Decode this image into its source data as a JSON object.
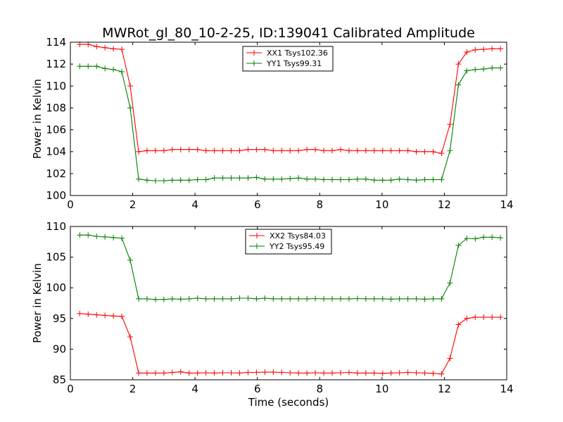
{
  "chart_data": [
    {
      "type": "line",
      "title": "MWRot_gl_80_10-2-25, ID:139041 Calibrated Amplitude",
      "xlabel": "",
      "ylabel": "Power in Kelvin",
      "xlim": [
        0,
        14
      ],
      "ylim": [
        100,
        114
      ],
      "xticks": [
        0,
        2,
        4,
        6,
        8,
        10,
        12,
        14
      ],
      "yticks": [
        100,
        102,
        104,
        106,
        108,
        110,
        112,
        114
      ],
      "legend_position": "top-center",
      "x": [
        0.3,
        0.57,
        0.84,
        1.11,
        1.38,
        1.65,
        1.92,
        2.19,
        2.46,
        2.73,
        3.0,
        3.27,
        3.54,
        3.81,
        4.08,
        4.35,
        4.62,
        4.89,
        5.16,
        5.43,
        5.7,
        5.97,
        6.24,
        6.51,
        6.78,
        7.05,
        7.32,
        7.59,
        7.86,
        8.13,
        8.4,
        8.67,
        8.94,
        9.21,
        9.48,
        9.75,
        10.02,
        10.29,
        10.56,
        10.83,
        11.1,
        11.37,
        11.64,
        11.91,
        12.18,
        12.45,
        12.72,
        12.99,
        13.26,
        13.53,
        13.8
      ],
      "series": [
        {
          "name": "XX1 Tsys102.36",
          "color": "#ff0000",
          "values": [
            113.8,
            113.8,
            113.6,
            113.5,
            113.4,
            113.35,
            110.0,
            104.0,
            104.1,
            104.1,
            104.1,
            104.2,
            104.2,
            104.2,
            104.2,
            104.1,
            104.1,
            104.1,
            104.1,
            104.1,
            104.2,
            104.2,
            104.2,
            104.1,
            104.1,
            104.1,
            104.1,
            104.2,
            104.2,
            104.1,
            104.1,
            104.2,
            104.1,
            104.1,
            104.1,
            104.1,
            104.1,
            104.1,
            104.1,
            104.1,
            104.0,
            104.0,
            104.0,
            103.85,
            106.5,
            112.0,
            113.1,
            113.3,
            113.35,
            113.4,
            113.4
          ]
        },
        {
          "name": "YY1 Tsys99.31",
          "color": "#008000",
          "values": [
            111.8,
            111.8,
            111.8,
            111.6,
            111.5,
            111.3,
            108.0,
            101.5,
            101.4,
            101.35,
            101.35,
            101.4,
            101.4,
            101.4,
            101.45,
            101.45,
            101.6,
            101.6,
            101.6,
            101.6,
            101.6,
            101.65,
            101.5,
            101.5,
            101.5,
            101.55,
            101.6,
            101.5,
            101.5,
            101.45,
            101.45,
            101.45,
            101.45,
            101.5,
            101.5,
            101.4,
            101.4,
            101.4,
            101.5,
            101.45,
            101.4,
            101.45,
            101.45,
            101.45,
            104.1,
            110.1,
            111.4,
            111.5,
            111.55,
            111.65,
            111.65
          ]
        }
      ]
    },
    {
      "type": "line",
      "title": "",
      "xlabel": "Time (seconds)",
      "ylabel": "Power in Kelvin",
      "xlim": [
        0,
        14
      ],
      "ylim": [
        85,
        110
      ],
      "xticks": [
        0,
        2,
        4,
        6,
        8,
        10,
        12,
        14
      ],
      "yticks": [
        85,
        90,
        95,
        100,
        105,
        110
      ],
      "legend_position": "top-center",
      "x": [
        0.3,
        0.57,
        0.84,
        1.11,
        1.38,
        1.65,
        1.92,
        2.19,
        2.46,
        2.73,
        3.0,
        3.27,
        3.54,
        3.81,
        4.08,
        4.35,
        4.62,
        4.89,
        5.16,
        5.43,
        5.7,
        5.97,
        6.24,
        6.51,
        6.78,
        7.05,
        7.32,
        7.59,
        7.86,
        8.13,
        8.4,
        8.67,
        8.94,
        9.21,
        9.48,
        9.75,
        10.02,
        10.29,
        10.56,
        10.83,
        11.1,
        11.37,
        11.64,
        11.91,
        12.18,
        12.45,
        12.72,
        12.99,
        13.26,
        13.53,
        13.8
      ],
      "series": [
        {
          "name": "XX2 Tsys84.03",
          "color": "#ff0000",
          "values": [
            95.8,
            95.7,
            95.6,
            95.5,
            95.4,
            95.35,
            92.0,
            86.1,
            86.1,
            86.1,
            86.1,
            86.2,
            86.3,
            86.1,
            86.1,
            86.15,
            86.1,
            86.15,
            86.15,
            86.1,
            86.2,
            86.2,
            86.25,
            86.25,
            86.2,
            86.15,
            86.1,
            86.1,
            86.15,
            86.1,
            86.1,
            86.15,
            86.2,
            86.1,
            86.1,
            86.1,
            86.05,
            86.1,
            86.15,
            86.2,
            86.15,
            86.1,
            86.05,
            85.95,
            88.5,
            94.0,
            95.0,
            95.2,
            95.2,
            95.2,
            95.2
          ]
        },
        {
          "name": "YY2 Tsys95.49",
          "color": "#008000",
          "values": [
            108.6,
            108.6,
            108.4,
            108.3,
            108.2,
            108.1,
            104.5,
            98.2,
            98.2,
            98.1,
            98.1,
            98.2,
            98.15,
            98.2,
            98.3,
            98.2,
            98.2,
            98.2,
            98.2,
            98.3,
            98.3,
            98.2,
            98.3,
            98.2,
            98.2,
            98.2,
            98.2,
            98.2,
            98.25,
            98.2,
            98.2,
            98.2,
            98.2,
            98.25,
            98.2,
            98.2,
            98.2,
            98.15,
            98.2,
            98.2,
            98.2,
            98.15,
            98.2,
            98.2,
            100.8,
            106.9,
            108.05,
            108.0,
            108.25,
            108.25,
            108.15
          ]
        }
      ]
    }
  ]
}
